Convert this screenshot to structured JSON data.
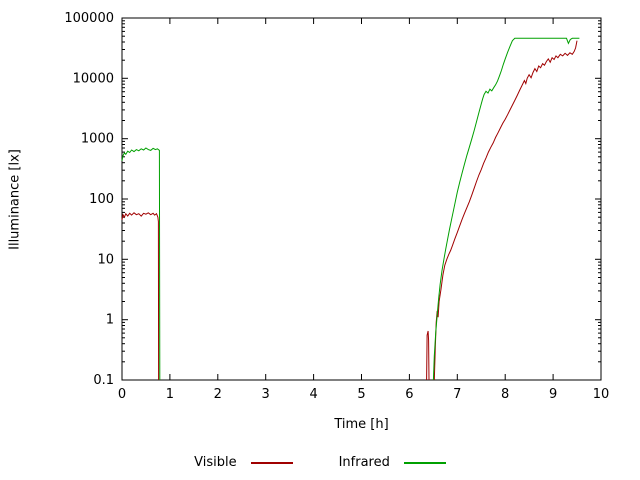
{
  "chart_data": {
    "type": "line",
    "title": "",
    "xlabel": "Time [h]",
    "ylabel": "Illuminance [lx]",
    "xlim": [
      0,
      10
    ],
    "ylog": [
      0.1,
      100000
    ],
    "y_scale": "log10",
    "grid": false,
    "legend_position": "bottom-center",
    "background": "#ffffff",
    "frame_color": "#000000",
    "x_ticks": [
      0,
      1,
      2,
      3,
      4,
      5,
      6,
      7,
      8,
      9,
      10
    ],
    "y_ticks": [
      0.1,
      1,
      10,
      100,
      1000,
      10000,
      100000
    ],
    "y_tick_labels": [
      "0.1",
      "1",
      "10",
      "100",
      "1000",
      "10000",
      "100000"
    ],
    "series": [
      {
        "name": "Visible",
        "color": "#a00000",
        "segments": [
          [
            [
              0.0,
              45
            ],
            [
              0.02,
              55
            ],
            [
              0.05,
              50
            ],
            [
              0.08,
              57
            ],
            [
              0.12,
              52
            ],
            [
              0.16,
              58
            ],
            [
              0.2,
              54
            ],
            [
              0.25,
              59
            ],
            [
              0.3,
              55
            ],
            [
              0.35,
              57
            ],
            [
              0.4,
              52
            ],
            [
              0.45,
              58
            ],
            [
              0.5,
              56
            ],
            [
              0.55,
              59
            ],
            [
              0.6,
              55
            ],
            [
              0.65,
              58
            ],
            [
              0.68,
              54
            ],
            [
              0.72,
              57
            ],
            [
              0.75,
              50
            ],
            [
              0.76,
              42
            ],
            [
              0.765,
              0.1
            ]
          ],
          [
            [
              6.36,
              0.1
            ],
            [
              6.37,
              0.55
            ],
            [
              6.39,
              0.65
            ],
            [
              6.4,
              0.45
            ],
            [
              6.41,
              0.1
            ]
          ],
          [
            [
              6.52,
              0.1
            ],
            [
              6.54,
              0.35
            ],
            [
              6.56,
              0.9
            ],
            [
              6.58,
              1.4
            ],
            [
              6.6,
              1.1
            ],
            [
              6.62,
              2.0
            ],
            [
              6.66,
              3.2
            ],
            [
              6.7,
              5.5
            ],
            [
              6.74,
              8.0
            ],
            [
              6.78,
              10
            ],
            [
              6.82,
              12
            ],
            [
              6.86,
              14
            ],
            [
              6.9,
              17
            ],
            [
              6.95,
              22
            ],
            [
              7.0,
              28
            ],
            [
              7.05,
              36
            ],
            [
              7.1,
              46
            ],
            [
              7.15,
              58
            ],
            [
              7.2,
              72
            ],
            [
              7.25,
              90
            ],
            [
              7.3,
              115
            ],
            [
              7.35,
              150
            ],
            [
              7.4,
              195
            ],
            [
              7.45,
              250
            ],
            [
              7.5,
              310
            ],
            [
              7.55,
              390
            ],
            [
              7.6,
              480
            ],
            [
              7.65,
              600
            ],
            [
              7.7,
              720
            ],
            [
              7.75,
              850
            ],
            [
              7.8,
              1050
            ],
            [
              7.85,
              1250
            ],
            [
              7.9,
              1500
            ],
            [
              7.95,
              1800
            ],
            [
              8.0,
              2100
            ],
            [
              8.05,
              2500
            ],
            [
              8.1,
              3000
            ],
            [
              8.15,
              3600
            ],
            [
              8.2,
              4300
            ],
            [
              8.25,
              5200
            ],
            [
              8.3,
              6300
            ],
            [
              8.35,
              7600
            ],
            [
              8.4,
              9200
            ],
            [
              8.43,
              8200
            ],
            [
              8.46,
              10000
            ],
            [
              8.5,
              11500
            ],
            [
              8.54,
              10200
            ],
            [
              8.58,
              12500
            ],
            [
              8.62,
              14500
            ],
            [
              8.66,
              13000
            ],
            [
              8.7,
              16000
            ],
            [
              8.74,
              15000
            ],
            [
              8.78,
              17500
            ],
            [
              8.82,
              16500
            ],
            [
              8.86,
              19000
            ],
            [
              8.9,
              21000
            ],
            [
              8.94,
              18500
            ],
            [
              8.98,
              22000
            ],
            [
              9.02,
              20500
            ],
            [
              9.06,
              23500
            ],
            [
              9.1,
              22000
            ],
            [
              9.15,
              25000
            ],
            [
              9.2,
              23500
            ],
            [
              9.25,
              26000
            ],
            [
              9.3,
              24000
            ],
            [
              9.35,
              26500
            ],
            [
              9.4,
              25000
            ],
            [
              9.44,
              28000
            ],
            [
              9.47,
              32000
            ],
            [
              9.5,
              42000
            ]
          ]
        ]
      },
      {
        "name": "Infrared",
        "color": "#00a000",
        "segments": [
          [
            [
              0.0,
              430
            ],
            [
              0.02,
              520
            ],
            [
              0.05,
              580
            ],
            [
              0.08,
              550
            ],
            [
              0.12,
              620
            ],
            [
              0.16,
              590
            ],
            [
              0.2,
              650
            ],
            [
              0.25,
              610
            ],
            [
              0.3,
              660
            ],
            [
              0.35,
              630
            ],
            [
              0.4,
              680
            ],
            [
              0.45,
              650
            ],
            [
              0.5,
              700
            ],
            [
              0.55,
              660
            ],
            [
              0.6,
              640
            ],
            [
              0.65,
              690
            ],
            [
              0.7,
              660
            ],
            [
              0.74,
              680
            ],
            [
              0.78,
              640
            ],
            [
              0.79,
              0.1
            ]
          ],
          [
            [
              6.5,
              0.1
            ],
            [
              6.52,
              0.25
            ],
            [
              6.55,
              0.6
            ],
            [
              6.58,
              1.2
            ],
            [
              6.61,
              2.2
            ],
            [
              6.64,
              3.8
            ],
            [
              6.68,
              6.5
            ],
            [
              6.72,
              10
            ],
            [
              6.76,
              15
            ],
            [
              6.8,
              22
            ],
            [
              6.84,
              32
            ],
            [
              6.88,
              46
            ],
            [
              6.92,
              65
            ],
            [
              6.96,
              92
            ],
            [
              7.0,
              130
            ],
            [
              7.05,
              190
            ],
            [
              7.1,
              270
            ],
            [
              7.15,
              380
            ],
            [
              7.2,
              530
            ],
            [
              7.25,
              720
            ],
            [
              7.3,
              980
            ],
            [
              7.35,
              1350
            ],
            [
              7.4,
              1900
            ],
            [
              7.45,
              2700
            ],
            [
              7.5,
              3800
            ],
            [
              7.53,
              4600
            ],
            [
              7.56,
              5400
            ],
            [
              7.6,
              6100
            ],
            [
              7.64,
              5700
            ],
            [
              7.68,
              6600
            ],
            [
              7.72,
              6200
            ],
            [
              7.76,
              7000
            ],
            [
              7.8,
              7800
            ],
            [
              7.84,
              9000
            ],
            [
              7.88,
              11000
            ],
            [
              7.92,
              13500
            ],
            [
              7.96,
              17000
            ],
            [
              8.0,
              21000
            ],
            [
              8.05,
              27000
            ],
            [
              8.1,
              34000
            ],
            [
              8.15,
              42000
            ],
            [
              8.2,
              46000
            ],
            [
              8.3,
              46000
            ],
            [
              8.4,
              46000
            ],
            [
              8.5,
              46000
            ],
            [
              8.6,
              46000
            ],
            [
              8.7,
              46000
            ],
            [
              8.8,
              46000
            ],
            [
              8.9,
              46000
            ],
            [
              9.0,
              46000
            ],
            [
              9.1,
              46000
            ],
            [
              9.2,
              46000
            ],
            [
              9.28,
              46000
            ],
            [
              9.32,
              38000
            ],
            [
              9.36,
              44000
            ],
            [
              9.4,
              46000
            ],
            [
              9.5,
              46000
            ],
            [
              9.55,
              46000
            ]
          ]
        ]
      }
    ]
  }
}
